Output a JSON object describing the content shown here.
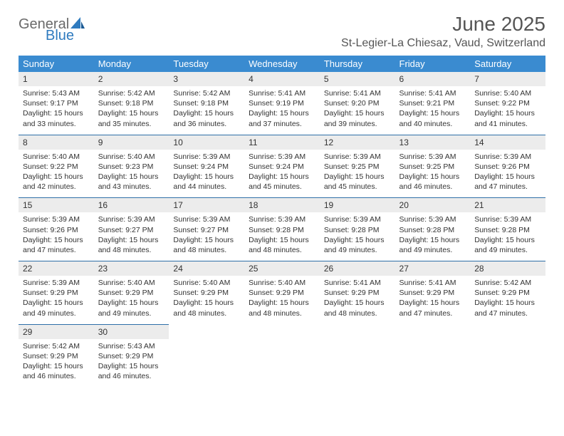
{
  "logo": {
    "line1": "General",
    "line2": "Blue"
  },
  "title": "June 2025",
  "location": "St-Legier-La Chiesaz, Vaud, Switzerland",
  "header_bg": "#3a8bd0",
  "weekdays": [
    "Sunday",
    "Monday",
    "Tuesday",
    "Wednesday",
    "Thursday",
    "Friday",
    "Saturday"
  ],
  "days": [
    {
      "n": "1",
      "sr": "5:43 AM",
      "ss": "9:17 PM",
      "dl": "15 hours and 33 minutes."
    },
    {
      "n": "2",
      "sr": "5:42 AM",
      "ss": "9:18 PM",
      "dl": "15 hours and 35 minutes."
    },
    {
      "n": "3",
      "sr": "5:42 AM",
      "ss": "9:18 PM",
      "dl": "15 hours and 36 minutes."
    },
    {
      "n": "4",
      "sr": "5:41 AM",
      "ss": "9:19 PM",
      "dl": "15 hours and 37 minutes."
    },
    {
      "n": "5",
      "sr": "5:41 AM",
      "ss": "9:20 PM",
      "dl": "15 hours and 39 minutes."
    },
    {
      "n": "6",
      "sr": "5:41 AM",
      "ss": "9:21 PM",
      "dl": "15 hours and 40 minutes."
    },
    {
      "n": "7",
      "sr": "5:40 AM",
      "ss": "9:22 PM",
      "dl": "15 hours and 41 minutes."
    },
    {
      "n": "8",
      "sr": "5:40 AM",
      "ss": "9:22 PM",
      "dl": "15 hours and 42 minutes."
    },
    {
      "n": "9",
      "sr": "5:40 AM",
      "ss": "9:23 PM",
      "dl": "15 hours and 43 minutes."
    },
    {
      "n": "10",
      "sr": "5:39 AM",
      "ss": "9:24 PM",
      "dl": "15 hours and 44 minutes."
    },
    {
      "n": "11",
      "sr": "5:39 AM",
      "ss": "9:24 PM",
      "dl": "15 hours and 45 minutes."
    },
    {
      "n": "12",
      "sr": "5:39 AM",
      "ss": "9:25 PM",
      "dl": "15 hours and 45 minutes."
    },
    {
      "n": "13",
      "sr": "5:39 AM",
      "ss": "9:25 PM",
      "dl": "15 hours and 46 minutes."
    },
    {
      "n": "14",
      "sr": "5:39 AM",
      "ss": "9:26 PM",
      "dl": "15 hours and 47 minutes."
    },
    {
      "n": "15",
      "sr": "5:39 AM",
      "ss": "9:26 PM",
      "dl": "15 hours and 47 minutes."
    },
    {
      "n": "16",
      "sr": "5:39 AM",
      "ss": "9:27 PM",
      "dl": "15 hours and 48 minutes."
    },
    {
      "n": "17",
      "sr": "5:39 AM",
      "ss": "9:27 PM",
      "dl": "15 hours and 48 minutes."
    },
    {
      "n": "18",
      "sr": "5:39 AM",
      "ss": "9:28 PM",
      "dl": "15 hours and 48 minutes."
    },
    {
      "n": "19",
      "sr": "5:39 AM",
      "ss": "9:28 PM",
      "dl": "15 hours and 49 minutes."
    },
    {
      "n": "20",
      "sr": "5:39 AM",
      "ss": "9:28 PM",
      "dl": "15 hours and 49 minutes."
    },
    {
      "n": "21",
      "sr": "5:39 AM",
      "ss": "9:28 PM",
      "dl": "15 hours and 49 minutes."
    },
    {
      "n": "22",
      "sr": "5:39 AM",
      "ss": "9:29 PM",
      "dl": "15 hours and 49 minutes."
    },
    {
      "n": "23",
      "sr": "5:40 AM",
      "ss": "9:29 PM",
      "dl": "15 hours and 49 minutes."
    },
    {
      "n": "24",
      "sr": "5:40 AM",
      "ss": "9:29 PM",
      "dl": "15 hours and 48 minutes."
    },
    {
      "n": "25",
      "sr": "5:40 AM",
      "ss": "9:29 PM",
      "dl": "15 hours and 48 minutes."
    },
    {
      "n": "26",
      "sr": "5:41 AM",
      "ss": "9:29 PM",
      "dl": "15 hours and 48 minutes."
    },
    {
      "n": "27",
      "sr": "5:41 AM",
      "ss": "9:29 PM",
      "dl": "15 hours and 47 minutes."
    },
    {
      "n": "28",
      "sr": "5:42 AM",
      "ss": "9:29 PM",
      "dl": "15 hours and 47 minutes."
    },
    {
      "n": "29",
      "sr": "5:42 AM",
      "ss": "9:29 PM",
      "dl": "15 hours and 46 minutes."
    },
    {
      "n": "30",
      "sr": "5:43 AM",
      "ss": "9:29 PM",
      "dl": "15 hours and 46 minutes."
    }
  ],
  "labels": {
    "sunrise": "Sunrise:",
    "sunset": "Sunset:",
    "daylight": "Daylight:"
  }
}
